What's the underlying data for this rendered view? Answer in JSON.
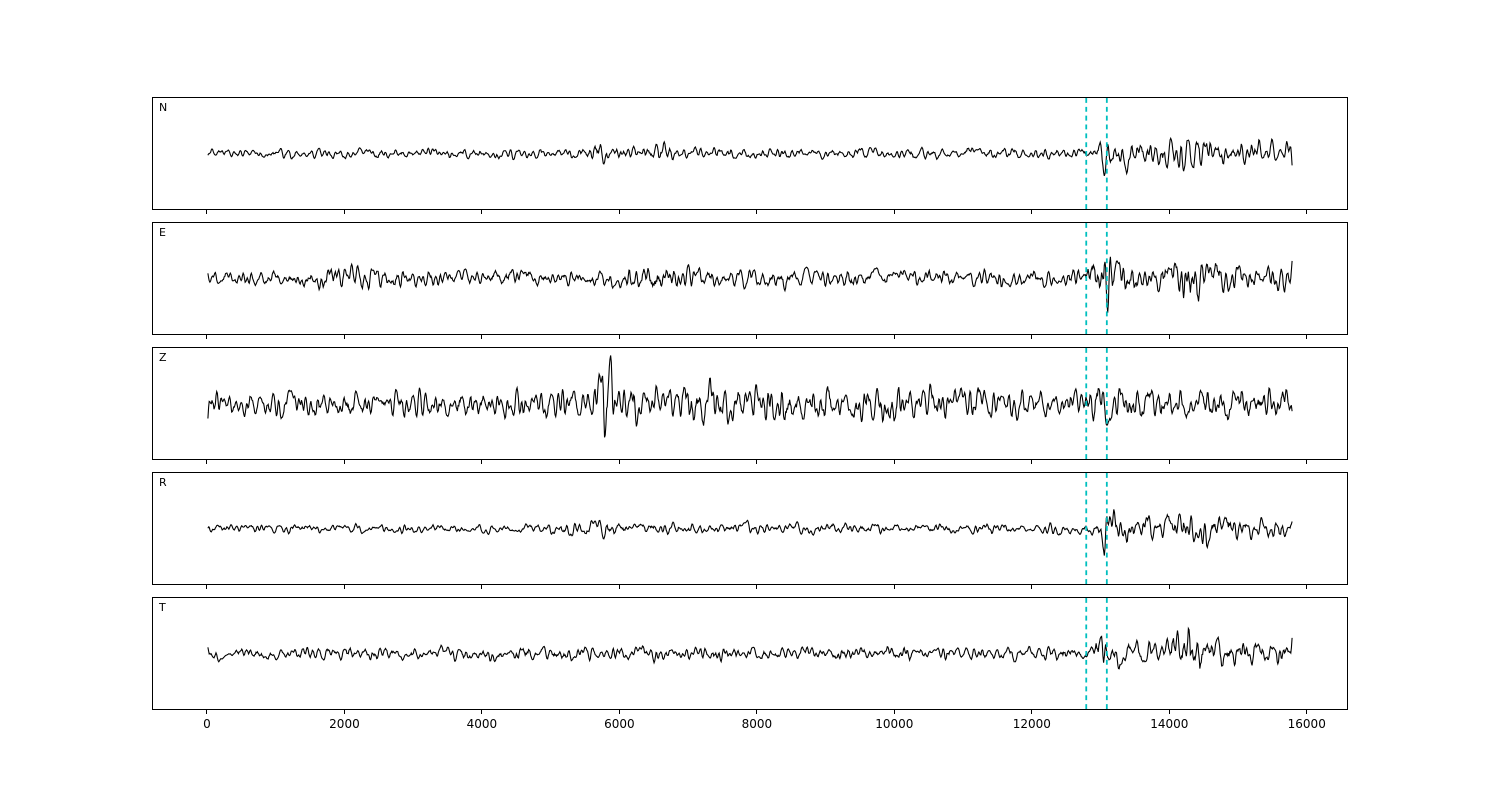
{
  "figure": {
    "background": "#ffffff"
  },
  "chart_data": {
    "type": "line",
    "title": "",
    "xlabel": "",
    "ylabel": "",
    "x_ticks": [
      0,
      2000,
      4000,
      6000,
      8000,
      10000,
      12000,
      14000,
      16000
    ],
    "xlim": [
      -800,
      16600
    ],
    "x_data_range": [
      0,
      15800
    ],
    "marker_lines": [
      12800,
      13100
    ],
    "marker_color": "#00bfbf",
    "line_color": "#000000",
    "panels": [
      {
        "label": "N",
        "seed": 7,
        "envelope": [
          [
            0,
            5
          ],
          [
            5000,
            5.5
          ],
          [
            9000,
            5.5
          ],
          [
            12600,
            6
          ],
          [
            12950,
            7
          ],
          [
            13060,
            26
          ],
          [
            13250,
            18
          ],
          [
            13600,
            14
          ],
          [
            14100,
            19
          ],
          [
            14600,
            16
          ],
          [
            15100,
            12
          ],
          [
            15800,
            10
          ]
        ],
        "bursts": [
          [
            5750,
            6,
            120
          ],
          [
            6600,
            5,
            150
          ]
        ]
      },
      {
        "label": "E",
        "seed": 23,
        "envelope": [
          [
            0,
            7
          ],
          [
            1400,
            9
          ],
          [
            2600,
            9
          ],
          [
            4000,
            8
          ],
          [
            5800,
            9
          ],
          [
            6700,
            17
          ],
          [
            7300,
            11
          ],
          [
            9000,
            9
          ],
          [
            11000,
            9
          ],
          [
            12750,
            10
          ],
          [
            13060,
            22
          ],
          [
            13500,
            15
          ],
          [
            14000,
            13
          ],
          [
            14340,
            34
          ],
          [
            14650,
            15
          ],
          [
            15300,
            14
          ],
          [
            15800,
            13
          ]
        ],
        "bursts": [
          [
            2100,
            3,
            400
          ],
          [
            13090,
            8,
            70
          ]
        ]
      },
      {
        "label": "Z",
        "seed": 41,
        "envelope": [
          [
            0,
            13
          ],
          [
            2500,
            14
          ],
          [
            5550,
            15
          ],
          [
            5800,
            34
          ],
          [
            6150,
            20
          ],
          [
            7000,
            20
          ],
          [
            7600,
            22
          ],
          [
            8800,
            18
          ],
          [
            10000,
            19
          ],
          [
            11500,
            17
          ],
          [
            12500,
            16
          ],
          [
            13300,
            18
          ],
          [
            14200,
            16
          ],
          [
            15000,
            17
          ],
          [
            15800,
            15
          ]
        ],
        "bursts": [
          [
            5790,
            12,
            90
          ],
          [
            7200,
            5,
            250
          ]
        ]
      },
      {
        "label": "R",
        "seed": 59,
        "envelope": [
          [
            0,
            4.5
          ],
          [
            4500,
            5
          ],
          [
            5700,
            7
          ],
          [
            6500,
            6
          ],
          [
            9000,
            5.5
          ],
          [
            12650,
            5.5
          ],
          [
            12950,
            7
          ],
          [
            13060,
            26
          ],
          [
            13350,
            17
          ],
          [
            13800,
            14
          ],
          [
            14300,
            19
          ],
          [
            14800,
            15
          ],
          [
            15300,
            11
          ],
          [
            15800,
            9
          ]
        ],
        "bursts": [
          [
            5750,
            4,
            150
          ]
        ]
      },
      {
        "label": "T",
        "seed": 73,
        "envelope": [
          [
            0,
            6
          ],
          [
            2000,
            7
          ],
          [
            4500,
            7
          ],
          [
            6500,
            8
          ],
          [
            8600,
            8
          ],
          [
            10500,
            7
          ],
          [
            12700,
            7
          ],
          [
            13040,
            21
          ],
          [
            13400,
            13
          ],
          [
            13900,
            12
          ],
          [
            14380,
            32
          ],
          [
            14700,
            15
          ],
          [
            15200,
            14
          ],
          [
            15800,
            11
          ]
        ],
        "bursts": [
          [
            13070,
            10,
            60
          ]
        ]
      }
    ]
  }
}
